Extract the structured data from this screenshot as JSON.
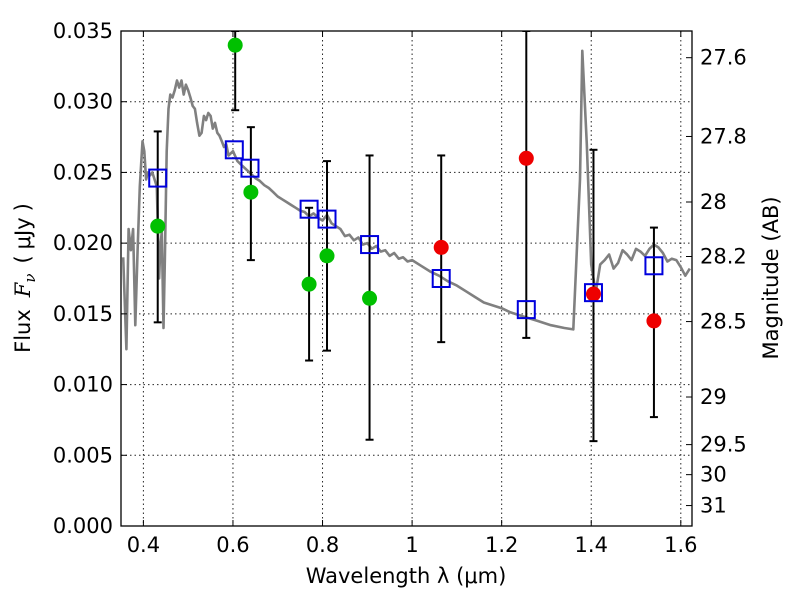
{
  "chart_data": {
    "type": "scatter",
    "title": "",
    "xlabel": "Wavelength  λ (μm)",
    "ylabel_parts": [
      "Flux",
      "F",
      "ν",
      "(",
      "μJy",
      ")"
    ],
    "ylabel_right": "Magnitude (AB)",
    "xlim": [
      0.35,
      1.625
    ],
    "ylim": [
      0.0,
      0.035
    ],
    "grid": true,
    "x_ticks": [
      0.4,
      0.6,
      0.8,
      1.0,
      1.2,
      1.4,
      1.6
    ],
    "x_tick_labels": [
      "0.4",
      "0.6",
      "0.8",
      "1",
      "1.2",
      "1.4",
      "1.6"
    ],
    "y_ticks": [
      0.0,
      0.005,
      0.01,
      0.015,
      0.02,
      0.025,
      0.03,
      0.035
    ],
    "y_tick_labels": [
      "0.000",
      "0.005",
      "0.010",
      "0.015",
      "0.020",
      "0.025",
      "0.030",
      "0.035"
    ],
    "right_ticks": [
      {
        "mag": 27.6,
        "label": "27.6"
      },
      {
        "mag": 27.8,
        "label": "27.8"
      },
      {
        "mag": 28.0,
        "label": "28"
      },
      {
        "mag": 28.2,
        "label": "28.2"
      },
      {
        "mag": 28.5,
        "label": "28.5"
      },
      {
        "mag": 29.0,
        "label": "29"
      },
      {
        "mag": 29.5,
        "label": "29.5"
      },
      {
        "mag": 30.0,
        "label": "30"
      },
      {
        "mag": 31.0,
        "label": "31"
      }
    ],
    "series": [
      {
        "name": "model-sed",
        "kind": "line",
        "color": "#808080",
        "x": [
          0.355,
          0.362,
          0.367,
          0.372,
          0.377,
          0.382,
          0.387,
          0.392,
          0.398,
          0.402,
          0.406,
          0.41,
          0.415,
          0.42,
          0.425,
          0.43,
          0.435,
          0.438,
          0.441,
          0.445,
          0.448,
          0.452,
          0.456,
          0.46,
          0.465,
          0.47,
          0.475,
          0.48,
          0.485,
          0.49,
          0.495,
          0.5,
          0.505,
          0.51,
          0.515,
          0.52,
          0.525,
          0.53,
          0.535,
          0.54,
          0.545,
          0.55,
          0.555,
          0.56,
          0.565,
          0.57,
          0.575,
          0.58,
          0.585,
          0.59,
          0.6,
          0.61,
          0.62,
          0.63,
          0.64,
          0.65,
          0.66,
          0.67,
          0.68,
          0.69,
          0.7,
          0.71,
          0.72,
          0.73,
          0.74,
          0.75,
          0.76,
          0.77,
          0.78,
          0.79,
          0.8,
          0.81,
          0.82,
          0.83,
          0.84,
          0.85,
          0.86,
          0.87,
          0.88,
          0.89,
          0.9,
          0.91,
          0.92,
          0.93,
          0.94,
          0.95,
          0.96,
          0.97,
          0.98,
          0.99,
          1.0,
          1.02,
          1.04,
          1.06,
          1.08,
          1.1,
          1.12,
          1.14,
          1.16,
          1.18,
          1.2,
          1.22,
          1.25,
          1.28,
          1.31,
          1.34,
          1.36,
          1.375,
          1.38,
          1.39,
          1.4,
          1.41,
          1.42,
          1.43,
          1.44,
          1.45,
          1.46,
          1.47,
          1.48,
          1.49,
          1.5,
          1.51,
          1.52,
          1.53,
          1.54,
          1.55,
          1.56,
          1.57,
          1.58,
          1.59,
          1.6,
          1.61,
          1.62
        ],
        "y": [
          0.019,
          0.0125,
          0.021,
          0.0195,
          0.021,
          0.0142,
          0.0195,
          0.024,
          0.0272,
          0.0265,
          0.0245,
          0.025,
          0.0248,
          0.025,
          0.0245,
          0.024,
          0.0175,
          0.0198,
          0.0208,
          0.014,
          0.019,
          0.0265,
          0.0295,
          0.0305,
          0.0303,
          0.0308,
          0.0315,
          0.031,
          0.0315,
          0.0305,
          0.0312,
          0.0308,
          0.0303,
          0.0297,
          0.0295,
          0.0285,
          0.0276,
          0.0278,
          0.029,
          0.0287,
          0.0292,
          0.029,
          0.0281,
          0.0285,
          0.0278,
          0.0276,
          0.0272,
          0.0268,
          0.027,
          0.0262,
          0.0265,
          0.0258,
          0.0255,
          0.0252,
          0.0249,
          0.0246,
          0.0244,
          0.0241,
          0.0239,
          0.0236,
          0.0233,
          0.0231,
          0.0229,
          0.0227,
          0.0225,
          0.0223,
          0.0222,
          0.0219,
          0.0221,
          0.0218,
          0.0216,
          0.022,
          0.0214,
          0.0212,
          0.021,
          0.0205,
          0.0206,
          0.0202,
          0.0204,
          0.0199,
          0.02,
          0.0196,
          0.0198,
          0.0194,
          0.0195,
          0.0191,
          0.0193,
          0.0189,
          0.019,
          0.0187,
          0.0188,
          0.0184,
          0.018,
          0.0177,
          0.0173,
          0.017,
          0.0166,
          0.0162,
          0.0158,
          0.0156,
          0.0154,
          0.0151,
          0.0148,
          0.0145,
          0.0142,
          0.014,
          0.0139,
          0.0245,
          0.0336,
          0.027,
          0.0185,
          0.0165,
          0.0185,
          0.0188,
          0.0192,
          0.0182,
          0.0186,
          0.0195,
          0.0192,
          0.0188,
          0.0196,
          0.0194,
          0.0191,
          0.0196,
          0.0199,
          0.0197,
          0.0193,
          0.0187,
          0.0189,
          0.0188,
          0.0183,
          0.0177,
          0.0182
        ]
      },
      {
        "name": "green-observed",
        "kind": "points",
        "color": "#00c000",
        "x": [
          0.432,
          0.605,
          0.64,
          0.77,
          0.81,
          0.905
        ],
        "y": [
          0.0212,
          0.034,
          0.0236,
          0.0171,
          0.0191,
          0.0161
        ]
      },
      {
        "name": "red-observed",
        "kind": "points",
        "color": "#ee0000",
        "x": [
          1.065,
          1.255,
          1.405,
          1.54
        ],
        "y": [
          0.0197,
          0.026,
          0.0164,
          0.0145
        ]
      },
      {
        "name": "blue-model-bands",
        "kind": "squares",
        "color": "#0000dd",
        "x": [
          0.432,
          0.603,
          0.638,
          0.77,
          0.81,
          0.905,
          1.065,
          1.255,
          1.405,
          1.54
        ],
        "y": [
          0.0246,
          0.0266,
          0.0253,
          0.0224,
          0.0217,
          0.0199,
          0.0175,
          0.0153,
          0.0165,
          0.0184
        ]
      }
    ],
    "error_bars": [
      {
        "x": 0.432,
        "low": 0.0144,
        "high": 0.0279
      },
      {
        "x": 0.605,
        "low": 0.0294,
        "high": 0.035
      },
      {
        "x": 0.64,
        "low": 0.0188,
        "high": 0.0282
      },
      {
        "x": 0.77,
        "low": 0.0117,
        "high": 0.0225
      },
      {
        "x": 0.81,
        "low": 0.0124,
        "high": 0.0258
      },
      {
        "x": 0.905,
        "low": 0.0061,
        "high": 0.0262
      },
      {
        "x": 1.065,
        "low": 0.013,
        "high": 0.0262
      },
      {
        "x": 1.255,
        "low": 0.0133,
        "high": 0.035
      },
      {
        "x": 1.405,
        "low": 0.006,
        "high": 0.0266
      },
      {
        "x": 1.54,
        "low": 0.0077,
        "high": 0.0211
      }
    ]
  }
}
